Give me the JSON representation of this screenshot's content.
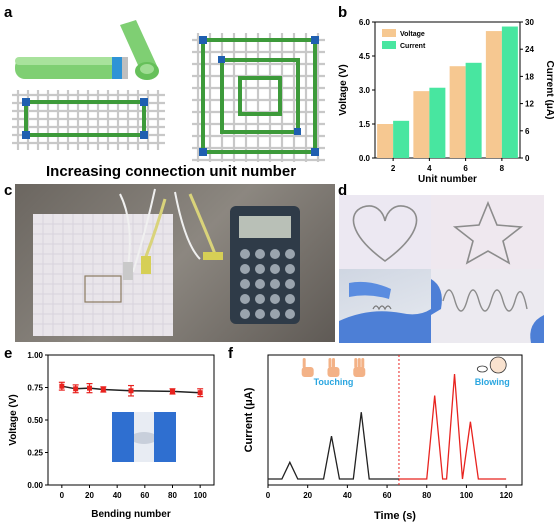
{
  "panels": {
    "a": {
      "label": "a",
      "caption": "Increasing connection unit number"
    },
    "c": {
      "label": "c"
    },
    "d": {
      "label": "d"
    }
  },
  "chart_data": [
    {
      "panel": "b",
      "type": "bar",
      "categories": [
        "2",
        "4",
        "6",
        "8"
      ],
      "series": [
        {
          "name": "Voltage",
          "axis": "left",
          "color": "#f6c891",
          "values": [
            1.5,
            2.95,
            4.05,
            5.6
          ]
        },
        {
          "name": "Current",
          "axis": "right",
          "color": "#48e6a0",
          "values": [
            8.2,
            15.5,
            21.0,
            29.0
          ]
        }
      ],
      "xlabel": "Unit number",
      "ylabel": "Voltage (V)",
      "y2label": "Current (μA)",
      "ylim": [
        0,
        6.0
      ],
      "y2lim": [
        0,
        30
      ],
      "yticks": [
        "0.0",
        "1.5",
        "3.0",
        "4.5",
        "6.0"
      ],
      "y2ticks": [
        "0",
        "6",
        "12",
        "18",
        "24",
        "30"
      ],
      "legend": "top-left"
    },
    {
      "panel": "e",
      "type": "line",
      "x": [
        0,
        10,
        20,
        30,
        50,
        80,
        100
      ],
      "series": [
        {
          "values": [
            0.76,
            0.74,
            0.745,
            0.735,
            0.725,
            0.72,
            0.71
          ],
          "errors": [
            0.03,
            0.03,
            0.035,
            0.02,
            0.04,
            0.02,
            0.03
          ],
          "color": "#e8231f"
        }
      ],
      "xlabel": "Bending number",
      "ylabel": "Voltage (V)",
      "xlim": [
        -10,
        110
      ],
      "ylim": [
        0,
        1.0
      ],
      "xticks": [
        "0",
        "20",
        "40",
        "60",
        "80",
        "100"
      ],
      "yticks": [
        "0.00",
        "0.25",
        "0.50",
        "0.75",
        "1.00"
      ]
    },
    {
      "panel": "f",
      "type": "line",
      "xlabel": "Time (s)",
      "ylabel": "Current (μA)",
      "xlim": [
        0,
        128
      ],
      "xticks": [
        "0",
        "20",
        "40",
        "60",
        "80",
        "100",
        "120"
      ],
      "annotations": [
        "Touching",
        "Blowing"
      ],
      "divider_x": 66,
      "series": [
        {
          "color": "#222222",
          "peaks": [
            [
              11,
              0.35
            ],
            [
              32,
              0.9
            ],
            [
              47,
              1.4
            ]
          ]
        },
        {
          "color": "#e8231f",
          "peaks": [
            [
              84,
              1.75
            ],
            [
              94,
              2.2
            ],
            [
              102,
              1.2
            ]
          ]
        }
      ]
    }
  ]
}
